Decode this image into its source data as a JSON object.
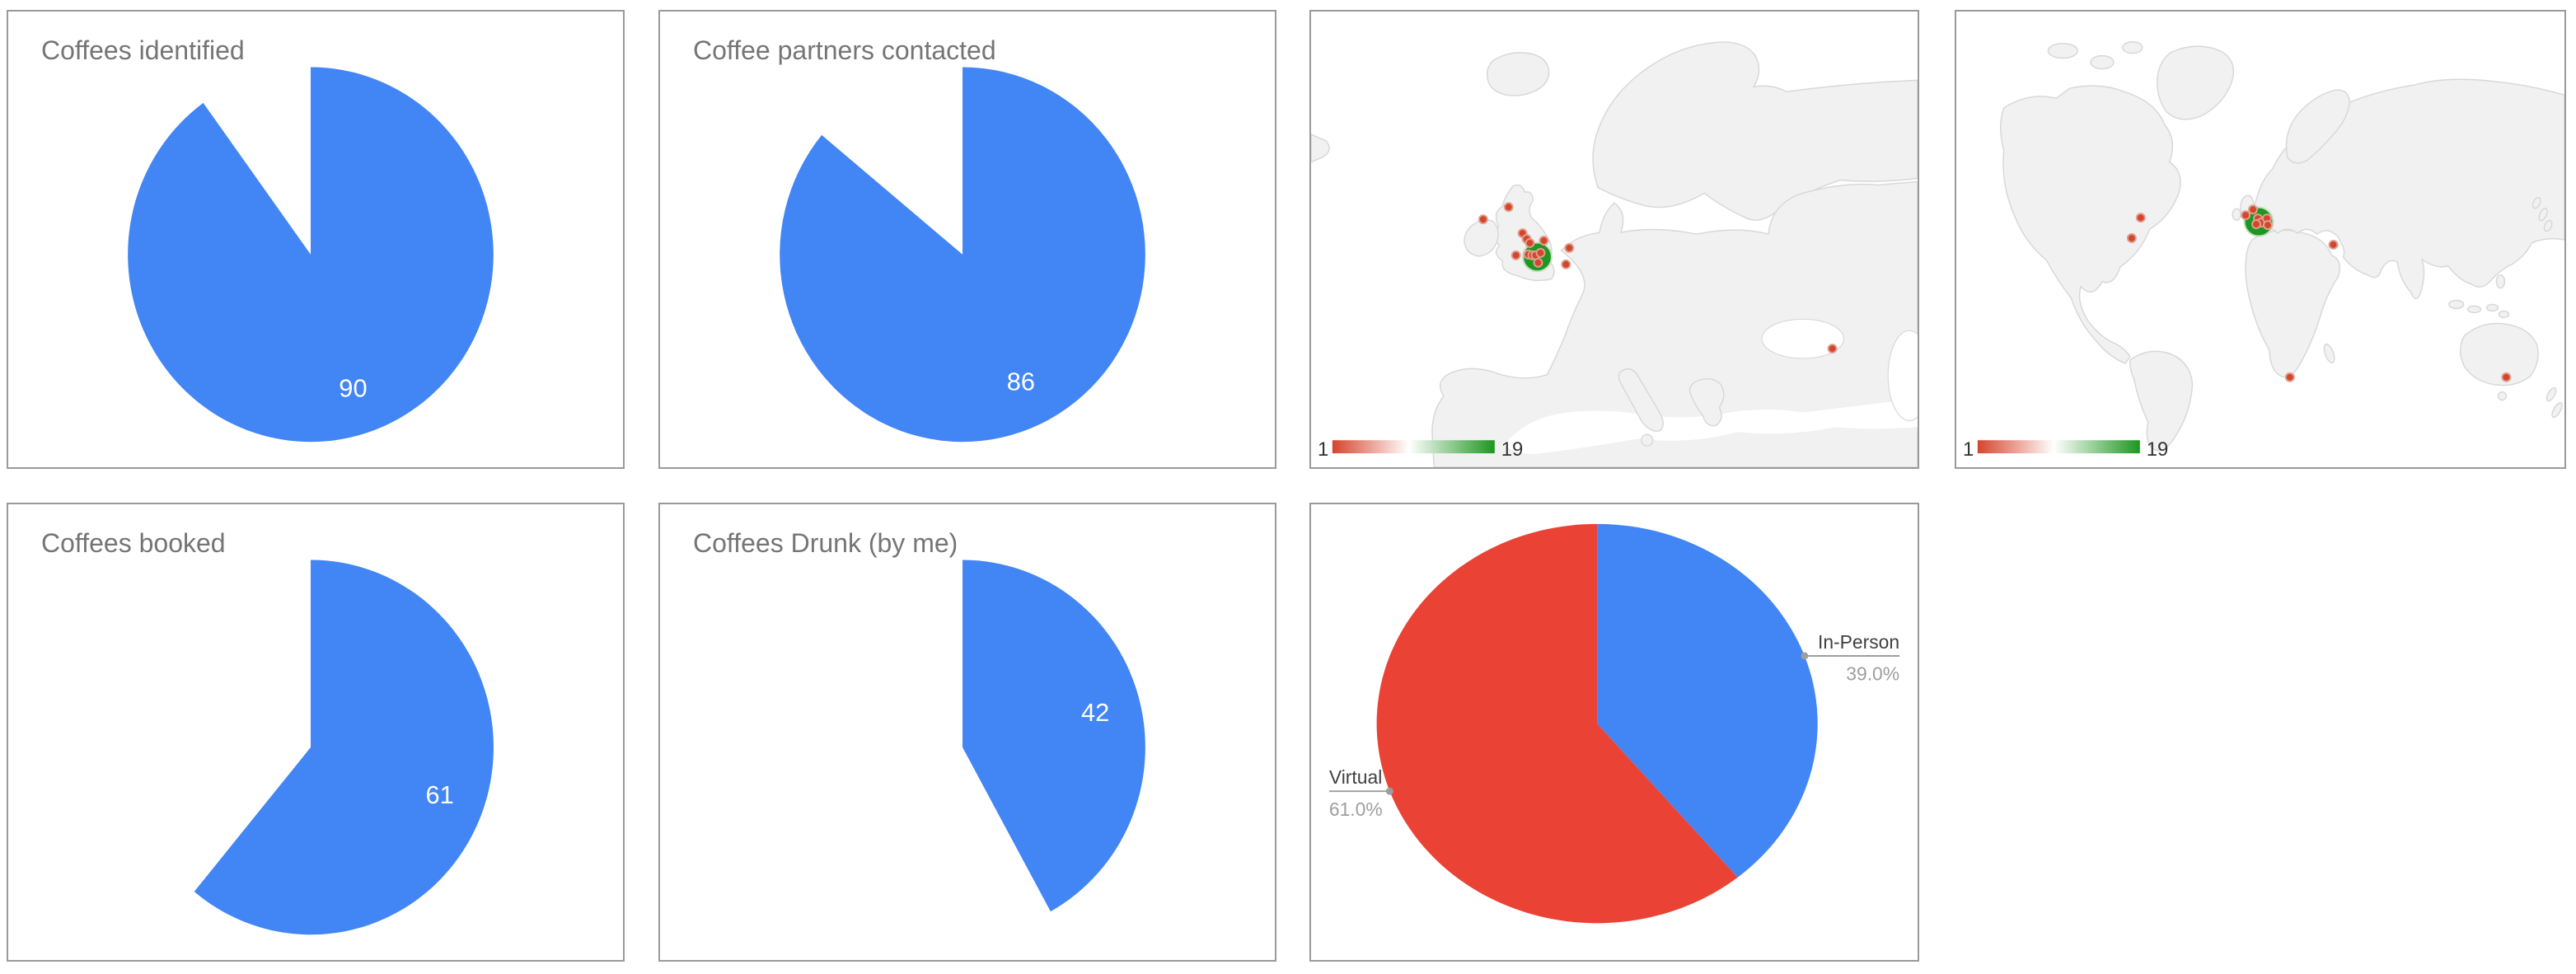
{
  "page": {
    "background": "#ffffff",
    "card_border": "#9a9a9a",
    "title_color": "#757575",
    "accent_blue": "#4285f4",
    "accent_red": "#ea4335",
    "marker_red": "#d6442c",
    "marker_green": "#1e9620"
  },
  "cards": {
    "identified": {
      "title": "Coffees identified"
    },
    "contacted": {
      "title": "Coffee partners contacted"
    },
    "booked": {
      "title": "Coffees booked"
    },
    "drunk": {
      "title": "Coffees Drunk (by me)"
    }
  },
  "chart_data": [
    {
      "panel": "coffees_identified",
      "type": "pie",
      "title": "Coffees identified",
      "series": [
        {
          "label": "Coffees identified",
          "value": 90
        }
      ],
      "implied_total": 100,
      "shown_percent": 90,
      "value_label": "90",
      "value_label_color": "#ffffff",
      "slice_color": "#4285f4",
      "start_angle_deg": 0,
      "direction": "clockwise",
      "legend": "none"
    },
    {
      "panel": "coffee_partners_contacted",
      "type": "pie",
      "title": "Coffee partners contacted",
      "series": [
        {
          "label": "Coffee partners contacted",
          "value": 86
        }
      ],
      "implied_total": 100,
      "shown_percent": 86,
      "value_label": "86",
      "value_label_color": "#ffffff",
      "slice_color": "#4285f4",
      "start_angle_deg": 0,
      "direction": "clockwise",
      "legend": "none"
    },
    {
      "panel": "map_europe",
      "type": "geo_bubble",
      "region": "Europe",
      "color_axis": {
        "min": 1,
        "max": 19,
        "min_label": "1",
        "max_label": "19",
        "colors": [
          "#d6442c",
          "#ffffff",
          "#1e9620"
        ]
      },
      "max_bubble": {
        "x": 276,
        "y": 300,
        "r": 17.5,
        "color": "#1e9620"
      },
      "bubble_color": "#d6442c",
      "bubble_r": 5,
      "bubbles": [
        [
          241,
          239
        ],
        [
          210,
          254
        ],
        [
          258,
          271
        ],
        [
          263,
          278
        ],
        [
          267,
          283
        ],
        [
          284,
          280
        ],
        [
          250,
          298
        ],
        [
          265,
          297
        ],
        [
          270,
          298
        ],
        [
          274,
          298
        ],
        [
          280,
          295
        ],
        [
          277,
          307
        ],
        [
          315,
          289
        ],
        [
          311,
          309
        ],
        [
          636,
          412
        ]
      ],
      "legend_position": "bottom-left"
    },
    {
      "panel": "map_world",
      "type": "geo_bubble",
      "region": "World",
      "color_axis": {
        "min": 1,
        "max": 19,
        "min_label": "1",
        "max_label": "19",
        "colors": [
          "#d6442c",
          "#ffffff",
          "#1e9620"
        ]
      },
      "max_bubble": {
        "x": 369,
        "y": 257,
        "r": 17.5,
        "color": "#1e9620"
      },
      "bubble_color": "#d6442c",
      "bubble_r": 5,
      "bubbles": [
        [
          225,
          252
        ],
        [
          214,
          277
        ],
        [
          362,
          242
        ],
        [
          353,
          249
        ],
        [
          368,
          253
        ],
        [
          372,
          258
        ],
        [
          379,
          253
        ],
        [
          380,
          261
        ],
        [
          366,
          260
        ],
        [
          460,
          285
        ],
        [
          407,
          447
        ],
        [
          671,
          447
        ]
      ],
      "legend_position": "bottom-left"
    },
    {
      "panel": "coffees_booked",
      "type": "pie",
      "title": "Coffees booked",
      "series": [
        {
          "label": "Coffees booked",
          "value": 61
        }
      ],
      "implied_total": 100,
      "shown_percent": 61,
      "value_label": "61",
      "value_label_color": "#ffffff",
      "slice_color": "#4285f4",
      "start_angle_deg": 0,
      "direction": "clockwise",
      "legend": "none"
    },
    {
      "panel": "coffees_drunk",
      "type": "pie",
      "title": "Coffees Drunk (by me)",
      "series": [
        {
          "label": "Coffees Drunk (by me)",
          "value": 42
        }
      ],
      "implied_total": 100,
      "shown_percent": 42,
      "value_label": "42",
      "value_label_color": "#ffffff",
      "slice_color": "#4285f4",
      "start_angle_deg": 0,
      "direction": "clockwise",
      "legend": "none"
    },
    {
      "panel": "meeting_type",
      "type": "pie",
      "title": "",
      "series": [
        {
          "label": "In-Person",
          "percent": 39.0,
          "pct_label": "39.0%",
          "color": "#4285f4"
        },
        {
          "label": "Virtual",
          "percent": 61.0,
          "pct_label": "61.0%",
          "color": "#ea4335"
        }
      ],
      "label_color": "#3f3f3f",
      "pct_color": "#9e9e9e",
      "leader_color": "#9e9e9e",
      "start_angle_deg": 0,
      "direction": "clockwise",
      "legend": "labeled-callouts"
    }
  ]
}
